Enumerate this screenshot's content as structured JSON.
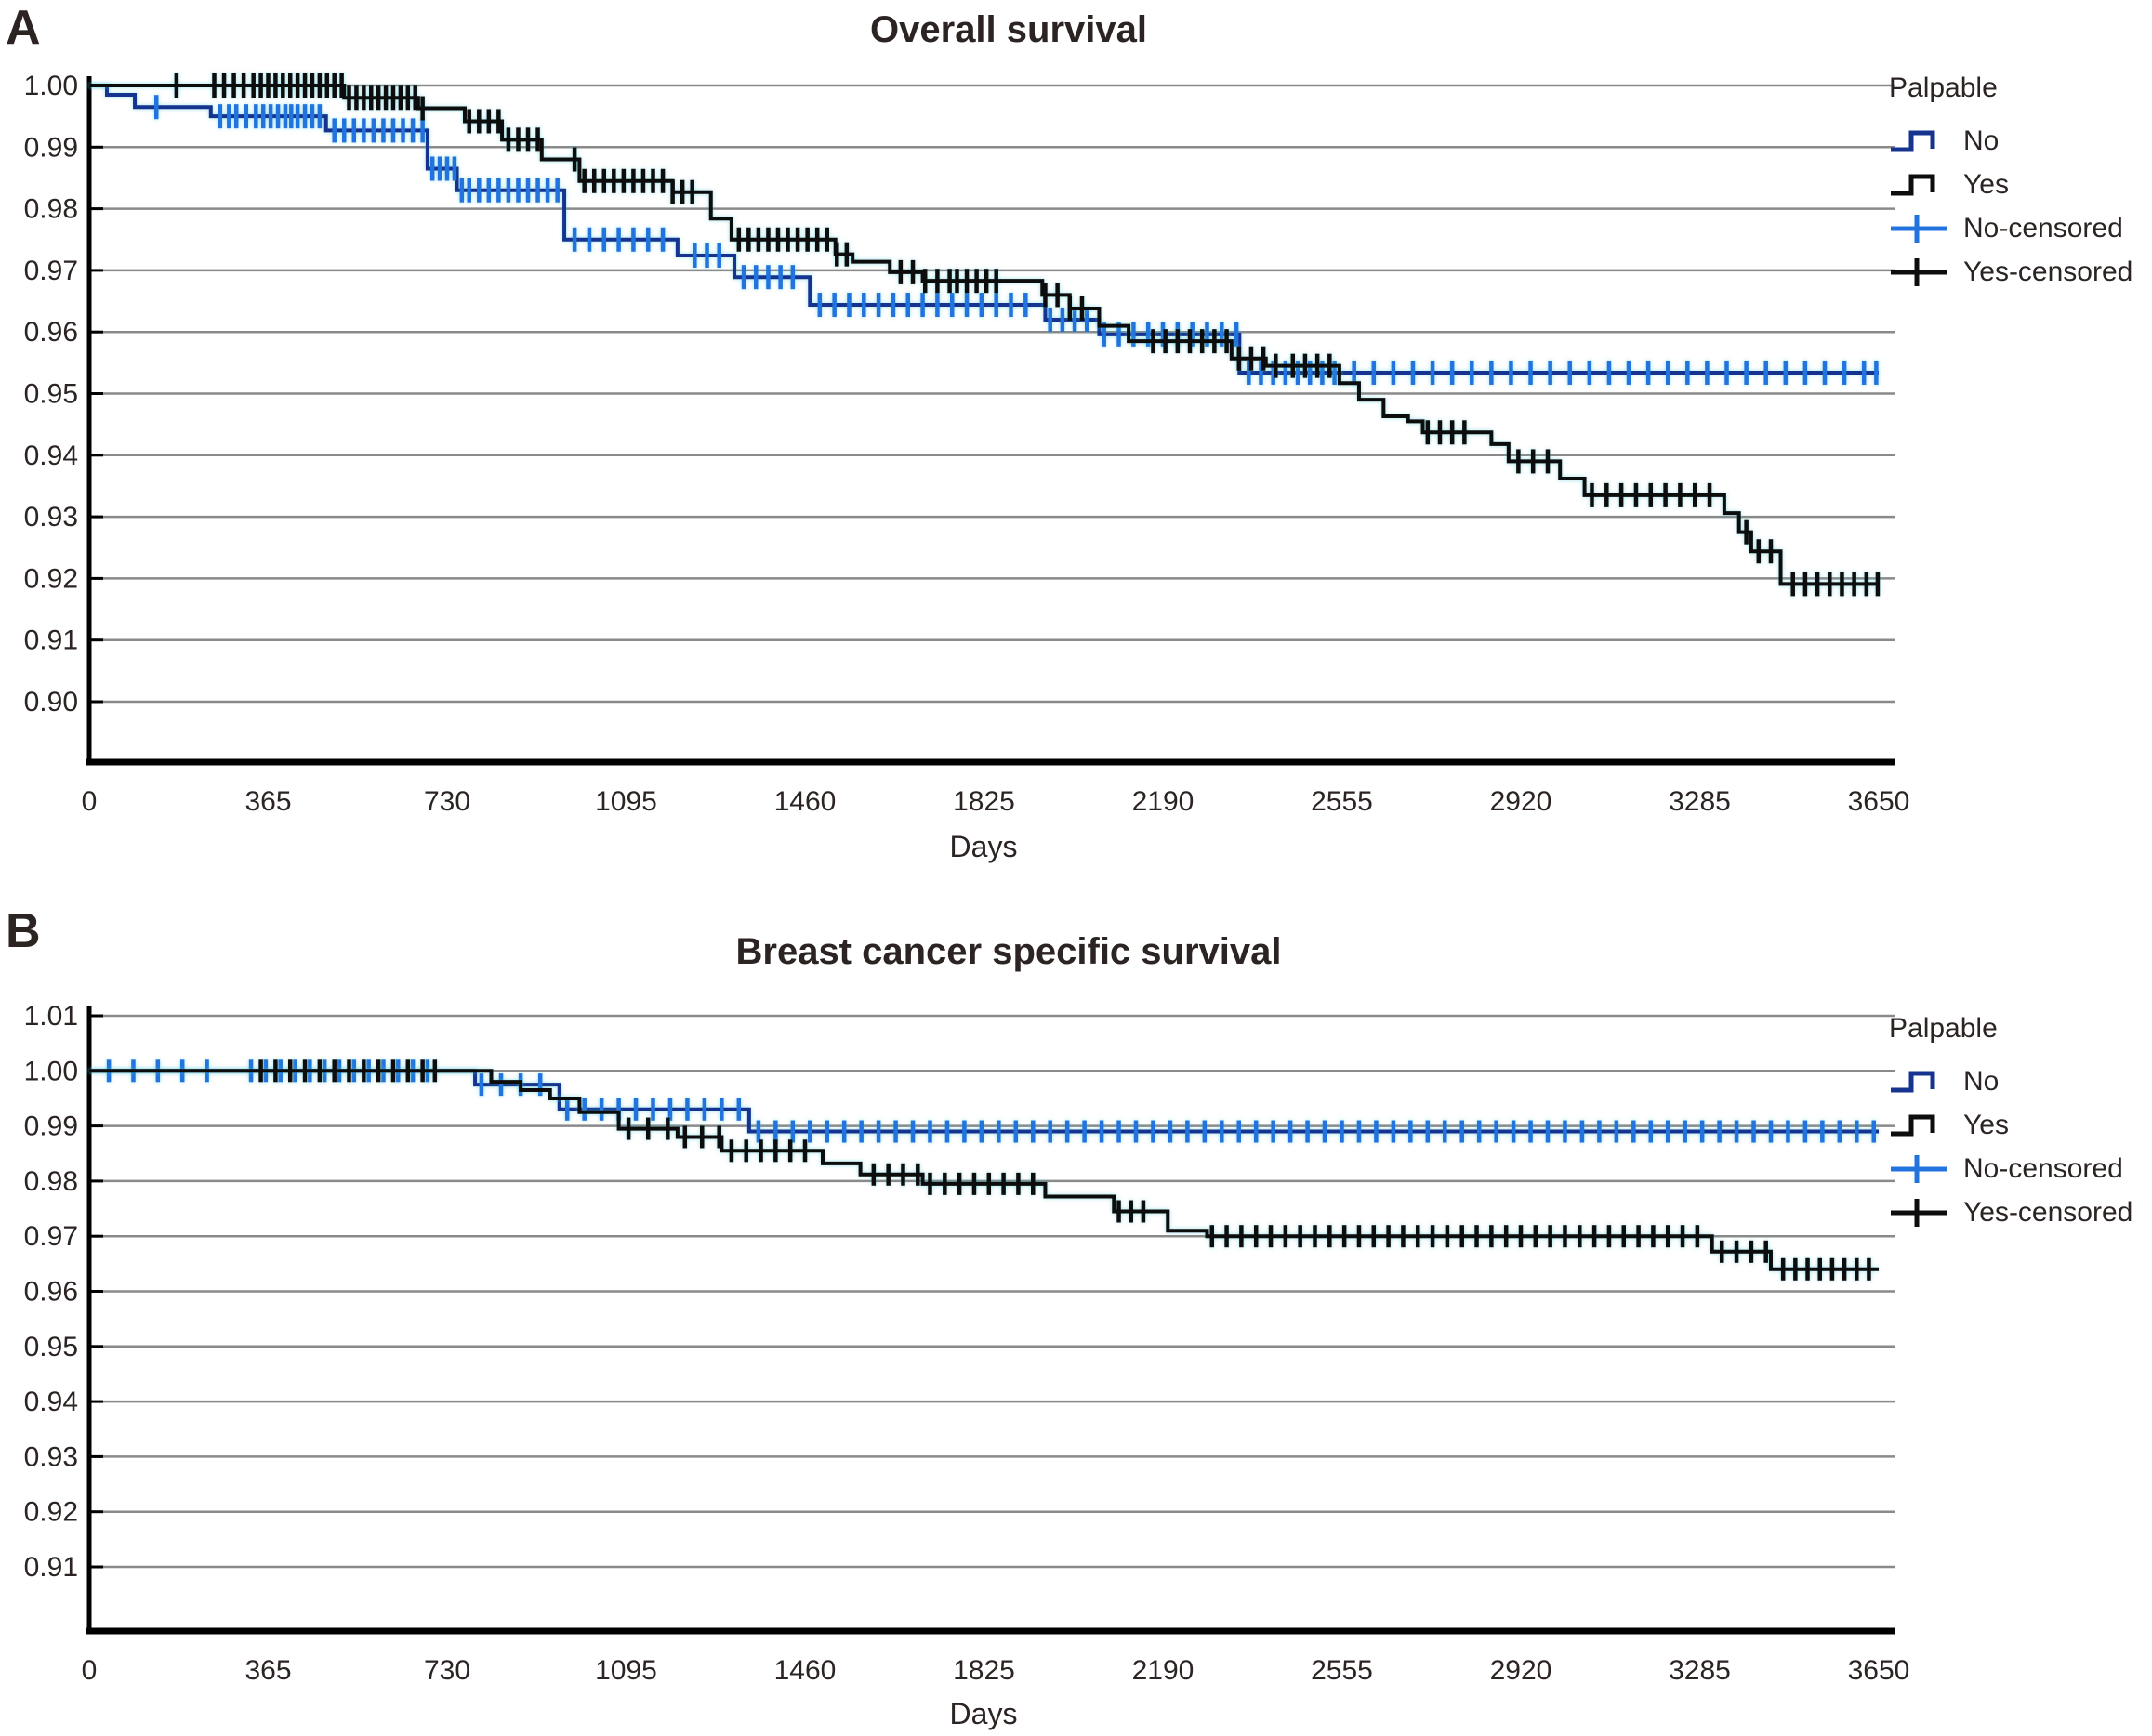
{
  "page": {
    "background": "#ffffff"
  },
  "colors": {
    "no_line": "#16348f",
    "no_censor": "#2273dd",
    "yes_line": "#0d0d0d",
    "yes_censor": "#0d0d0d",
    "grid": "#8a8a8a",
    "axis": "#000000",
    "halo": "#46c8d9",
    "text": "#2b2423"
  },
  "legend": {
    "title": "Palpable",
    "items": [
      {
        "label": "No",
        "glyph": "step",
        "color_key": "no_line"
      },
      {
        "label": "Yes",
        "glyph": "step",
        "color_key": "yes_line"
      },
      {
        "label": "No-censored",
        "glyph": "plus",
        "color_key": "no_censor"
      },
      {
        "label": "Yes-censored",
        "glyph": "plus",
        "color_key": "yes_censor"
      }
    ]
  },
  "chart_data": [
    {
      "id": "overall-survival",
      "panel_label": "A",
      "type": "line",
      "subtype": "kaplan-meier-step",
      "title": "Overall survival",
      "xlabel": "Days",
      "xlim": [
        0,
        3650
      ],
      "x_ticks": [
        {
          "d": 0,
          "label": "0"
        },
        {
          "d": 365,
          "label": "365"
        },
        {
          "d": 730,
          "label": "730"
        },
        {
          "d": 1095,
          "label": "1095"
        },
        {
          "d": 1460,
          "label": "1460"
        },
        {
          "d": 1825,
          "label": "1825"
        },
        {
          "d": 2190,
          "label": "2190"
        },
        {
          "d": 2555,
          "label": "2555"
        },
        {
          "d": 2920,
          "label": "2920"
        },
        {
          "d": 3285,
          "label": "3285"
        },
        {
          "d": 3650,
          "label": "3650"
        }
      ],
      "ylim": [
        0.895,
        1.0
      ],
      "y_ticks": [
        {
          "v": 1.0,
          "label": "1.00"
        },
        {
          "v": 0.99,
          "label": "0.99"
        },
        {
          "v": 0.98,
          "label": "0.98"
        },
        {
          "v": 0.97,
          "label": "0.97"
        },
        {
          "v": 0.96,
          "label": "0.96"
        },
        {
          "v": 0.95,
          "label": "0.95"
        },
        {
          "v": 0.94,
          "label": "0.94"
        },
        {
          "v": 0.93,
          "label": "0.93"
        },
        {
          "v": 0.92,
          "label": "0.92"
        },
        {
          "v": 0.91,
          "label": "0.91"
        },
        {
          "v": 0.9,
          "label": "0.90"
        }
      ],
      "grid": "horizontal",
      "legend_position": "right-top",
      "series": [
        {
          "name": "No",
          "color_key": "no_line",
          "censor_color_key": "no_censor",
          "points": [
            [
              0,
              1.0
            ],
            [
              36,
              0.9985
            ],
            [
              93,
              0.9965
            ],
            [
              248,
              0.995
            ],
            [
              483,
              0.9927
            ],
            [
              690,
              0.9865
            ],
            [
              750,
              0.983
            ],
            [
              969,
              0.975
            ],
            [
              1200,
              0.9724
            ],
            [
              1316,
              0.9689
            ],
            [
              1470,
              0.9644
            ],
            [
              1950,
              0.962
            ],
            [
              2060,
              0.9596
            ],
            [
              2346,
              0.9534
            ]
          ],
          "censored_days": [
            137,
            267,
            285,
            300,
            320,
            340,
            355,
            370,
            385,
            400,
            412,
            425,
            440,
            455,
            470,
            500,
            520,
            540,
            560,
            580,
            600,
            620,
            640,
            660,
            680,
            700,
            715,
            730,
            745,
            760,
            775,
            795,
            815,
            835,
            855,
            875,
            895,
            915,
            935,
            955,
            990,
            1020,
            1050,
            1080,
            1110,
            1140,
            1170,
            1235,
            1260,
            1285,
            1335,
            1360,
            1385,
            1410,
            1435,
            1490,
            1520,
            1550,
            1580,
            1610,
            1640,
            1670,
            1700,
            1730,
            1760,
            1790,
            1820,
            1850,
            1880,
            1910,
            1960,
            1985,
            2010,
            2035,
            2070,
            2100,
            2130,
            2160,
            2190,
            2220,
            2250,
            2280,
            2310,
            2340,
            2365,
            2390,
            2415,
            2440,
            2465,
            2490,
            2515,
            2540,
            2580,
            2620,
            2660,
            2700,
            2740,
            2780,
            2820,
            2860,
            2900,
            2940,
            2980,
            3020,
            3060,
            3100,
            3140,
            3180,
            3220,
            3260,
            3300,
            3340,
            3380,
            3420,
            3460,
            3500,
            3540,
            3580,
            3620,
            3645
          ],
          "final_value": 0.953
        },
        {
          "name": "Yes",
          "color_key": "yes_line",
          "censor_color_key": "yes_censor",
          "points": [
            [
              0,
              1.0
            ],
            [
              520,
              0.998
            ],
            [
              671,
              0.9963
            ],
            [
              766,
              0.9942
            ],
            [
              842,
              0.9912
            ],
            [
              923,
              0.988
            ],
            [
              1000,
              0.9845
            ],
            [
              1190,
              0.9827
            ],
            [
              1268,
              0.9784
            ],
            [
              1310,
              0.975
            ],
            [
              1522,
              0.9726
            ],
            [
              1557,
              0.9714
            ],
            [
              1633,
              0.9697
            ],
            [
              1700,
              0.9683
            ],
            [
              1944,
              0.966
            ],
            [
              2000,
              0.9638
            ],
            [
              2060,
              0.961
            ],
            [
              2120,
              0.9585
            ],
            [
              2330,
              0.9557
            ],
            [
              2400,
              0.9545
            ],
            [
              2550,
              0.9517
            ],
            [
              2590,
              0.949
            ],
            [
              2640,
              0.9463
            ],
            [
              2690,
              0.9455
            ],
            [
              2720,
              0.9437
            ],
            [
              2860,
              0.9418
            ],
            [
              2895,
              0.939
            ],
            [
              3000,
              0.9362
            ],
            [
              3050,
              0.9335
            ],
            [
              3335,
              0.9306
            ],
            [
              3365,
              0.9275
            ],
            [
              3390,
              0.9244
            ],
            [
              3450,
              0.9191
            ]
          ],
          "censored_days": [
            178,
            255,
            275,
            295,
            315,
            335,
            350,
            365,
            380,
            395,
            410,
            425,
            440,
            455,
            470,
            485,
            500,
            515,
            530,
            545,
            560,
            575,
            590,
            605,
            620,
            635,
            650,
            665,
            680,
            775,
            795,
            815,
            835,
            855,
            875,
            895,
            915,
            990,
            1010,
            1030,
            1050,
            1070,
            1090,
            1110,
            1130,
            1150,
            1170,
            1190,
            1210,
            1230,
            1325,
            1345,
            1365,
            1385,
            1405,
            1425,
            1445,
            1465,
            1485,
            1505,
            1525,
            1545,
            1655,
            1680,
            1705,
            1730,
            1755,
            1770,
            1790,
            1810,
            1830,
            1850,
            1950,
            1975,
            2000,
            2025,
            2170,
            2195,
            2220,
            2245,
            2270,
            2295,
            2320,
            2345,
            2370,
            2395,
            2420,
            2455,
            2480,
            2505,
            2530,
            2730,
            2755,
            2780,
            2805,
            2915,
            2945,
            2975,
            3065,
            3095,
            3125,
            3155,
            3185,
            3215,
            3245,
            3275,
            3305,
            3380,
            3405,
            3430,
            3475,
            3500,
            3525,
            3550,
            3575,
            3600,
            3625,
            3648
          ],
          "final_value": 0.919
        }
      ]
    },
    {
      "id": "breast-cancer-specific-survival",
      "panel_label": "B",
      "type": "line",
      "subtype": "kaplan-meier-step",
      "title": "Breast cancer specific survival",
      "xlabel": "Days",
      "xlim": [
        0,
        3650
      ],
      "x_ticks": [
        {
          "d": 0,
          "label": "0"
        },
        {
          "d": 365,
          "label": "365"
        },
        {
          "d": 730,
          "label": "730"
        },
        {
          "d": 1095,
          "label": "1095"
        },
        {
          "d": 1460,
          "label": "1460"
        },
        {
          "d": 1825,
          "label": "1825"
        },
        {
          "d": 2190,
          "label": "2190"
        },
        {
          "d": 2555,
          "label": "2555"
        },
        {
          "d": 2920,
          "label": "2920"
        },
        {
          "d": 3285,
          "label": "3285"
        },
        {
          "d": 3650,
          "label": "3650"
        }
      ],
      "ylim": [
        0.905,
        1.01
      ],
      "y_ticks": [
        {
          "v": 1.01,
          "label": "1.01"
        },
        {
          "v": 1.0,
          "label": "1.00"
        },
        {
          "v": 0.99,
          "label": "0.99"
        },
        {
          "v": 0.98,
          "label": "0.98"
        },
        {
          "v": 0.97,
          "label": "0.97"
        },
        {
          "v": 0.96,
          "label": "0.96"
        },
        {
          "v": 0.95,
          "label": "0.95"
        },
        {
          "v": 0.94,
          "label": "0.94"
        },
        {
          "v": 0.93,
          "label": "0.93"
        },
        {
          "v": 0.92,
          "label": "0.92"
        },
        {
          "v": 0.91,
          "label": "0.91"
        }
      ],
      "grid": "horizontal",
      "legend_position": "right-top",
      "series": [
        {
          "name": "No",
          "color_key": "no_line",
          "censor_color_key": "no_censor",
          "points": [
            [
              0,
              1.0
            ],
            [
              787,
              0.9975
            ],
            [
              959,
              0.993
            ],
            [
              1346,
              0.989
            ]
          ],
          "censored_days": [
            40,
            90,
            140,
            190,
            240,
            330,
            360,
            390,
            420,
            450,
            480,
            510,
            540,
            570,
            600,
            630,
            660,
            690,
            800,
            840,
            880,
            920,
            975,
            1010,
            1045,
            1080,
            1115,
            1150,
            1185,
            1220,
            1255,
            1290,
            1325,
            1365,
            1400,
            1435,
            1470,
            1505,
            1540,
            1575,
            1610,
            1645,
            1680,
            1715,
            1750,
            1785,
            1820,
            1855,
            1890,
            1925,
            1960,
            1995,
            2030,
            2065,
            2100,
            2135,
            2170,
            2205,
            2240,
            2275,
            2310,
            2345,
            2380,
            2415,
            2450,
            2485,
            2520,
            2555,
            2590,
            2625,
            2660,
            2695,
            2730,
            2765,
            2800,
            2835,
            2870,
            2905,
            2940,
            2975,
            3010,
            3045,
            3080,
            3115,
            3150,
            3185,
            3220,
            3255,
            3290,
            3325,
            3360,
            3395,
            3430,
            3465,
            3500,
            3535,
            3570,
            3605,
            3640
          ],
          "final_value": 0.989
        },
        {
          "name": "Yes",
          "color_key": "yes_line",
          "censor_color_key": "yes_censor",
          "points": [
            [
              0,
              1.0
            ],
            [
              820,
              0.998
            ],
            [
              880,
              0.9965
            ],
            [
              940,
              0.995
            ],
            [
              1000,
              0.9925
            ],
            [
              1080,
              0.9895
            ],
            [
              1200,
              0.988
            ],
            [
              1290,
              0.9855
            ],
            [
              1496,
              0.9832
            ],
            [
              1573,
              0.9812
            ],
            [
              1700,
              0.9795
            ],
            [
              1950,
              0.9772
            ],
            [
              2090,
              0.9745
            ],
            [
              2200,
              0.971
            ],
            [
              2280,
              0.97
            ],
            [
              3310,
              0.9672
            ],
            [
              3430,
              0.964
            ]
          ],
          "censored_days": [
            350,
            380,
            410,
            440,
            470,
            500,
            530,
            560,
            590,
            620,
            650,
            680,
            705,
            1100,
            1140,
            1180,
            1215,
            1250,
            1285,
            1310,
            1340,
            1370,
            1400,
            1430,
            1460,
            1600,
            1630,
            1660,
            1690,
            1715,
            1745,
            1775,
            1805,
            1835,
            1865,
            1895,
            1925,
            2100,
            2125,
            2150,
            2290,
            2320,
            2350,
            2380,
            2410,
            2440,
            2470,
            2500,
            2530,
            2560,
            2590,
            2620,
            2650,
            2680,
            2710,
            2740,
            2770,
            2800,
            2830,
            2860,
            2890,
            2920,
            2950,
            2980,
            3010,
            3040,
            3070,
            3100,
            3130,
            3160,
            3190,
            3220,
            3250,
            3280,
            3330,
            3360,
            3390,
            3420,
            3455,
            3480,
            3505,
            3530,
            3555,
            3580,
            3605,
            3630
          ],
          "final_value": 0.964
        }
      ]
    }
  ]
}
